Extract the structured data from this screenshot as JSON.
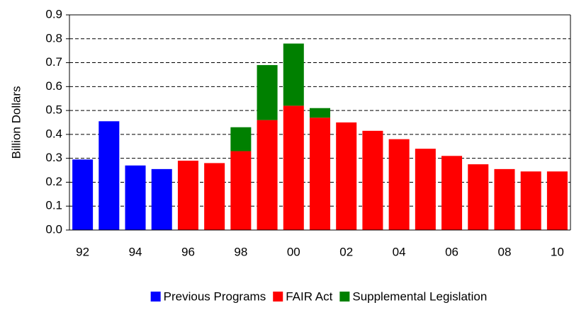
{
  "chart_data": {
    "type": "bar",
    "stacked": true,
    "y_label": "Billion Dollars",
    "categories": [
      "92",
      null,
      "94",
      null,
      "96",
      null,
      "98",
      null,
      "00",
      null,
      "02",
      null,
      "04",
      null,
      "06",
      null,
      "08",
      null,
      "10"
    ],
    "series": [
      {
        "name": "Previous Programs",
        "color": "#0000ff",
        "values": [
          0.295,
          0.455,
          0.27,
          0.255,
          null,
          null,
          null,
          null,
          null,
          null,
          null,
          null,
          null,
          null,
          null,
          null,
          null,
          null,
          null
        ]
      },
      {
        "name": "FAIR Act",
        "color": "#ff0000",
        "values": [
          null,
          null,
          null,
          null,
          0.29,
          0.28,
          0.33,
          0.46,
          0.52,
          0.47,
          0.45,
          0.415,
          0.38,
          0.34,
          0.31,
          0.275,
          0.255,
          0.245,
          0.245
        ]
      },
      {
        "name": "Supplemental Legislation",
        "color": "#008000",
        "values": [
          null,
          null,
          null,
          null,
          null,
          null,
          0.1,
          0.23,
          0.26,
          0.04,
          null,
          null,
          null,
          null,
          null,
          null,
          null,
          null,
          null
        ]
      }
    ],
    "ylim": [
      0,
      0.9
    ],
    "yticks": [
      {
        "value": 0,
        "label": "0.0"
      },
      0.1,
      0.2,
      0.3,
      0.4,
      0.5,
      0.6,
      0.7,
      0.8,
      0.9
    ],
    "grid": true,
    "legend": "bottom"
  }
}
